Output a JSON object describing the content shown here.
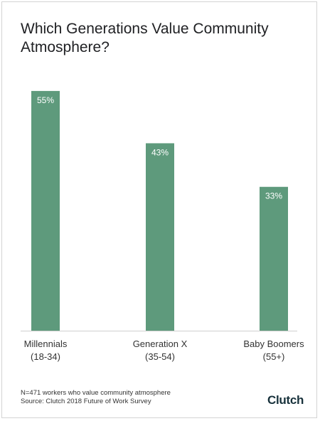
{
  "title": {
    "line1": "Which Generations Value Community",
    "line2": "Atmosphere?"
  },
  "chart_data": {
    "type": "bar",
    "categories": [
      [
        "Millennials",
        "(18-34)"
      ],
      [
        "Generation X",
        "(35-54)"
      ],
      [
        "Baby Boomers",
        "(55+)"
      ]
    ],
    "values": [
      55,
      43,
      33
    ],
    "value_labels": [
      "55%",
      "43%",
      "33%"
    ],
    "ylim": [
      0,
      62
    ],
    "grid": false,
    "bar_color": "#5e9a7c"
  },
  "footnote": {
    "line1": "N=471 workers who value community atmosphere",
    "line2": "Source: Clutch 2018 Future of Work Survey"
  },
  "logo": {
    "text": "Clutch"
  }
}
